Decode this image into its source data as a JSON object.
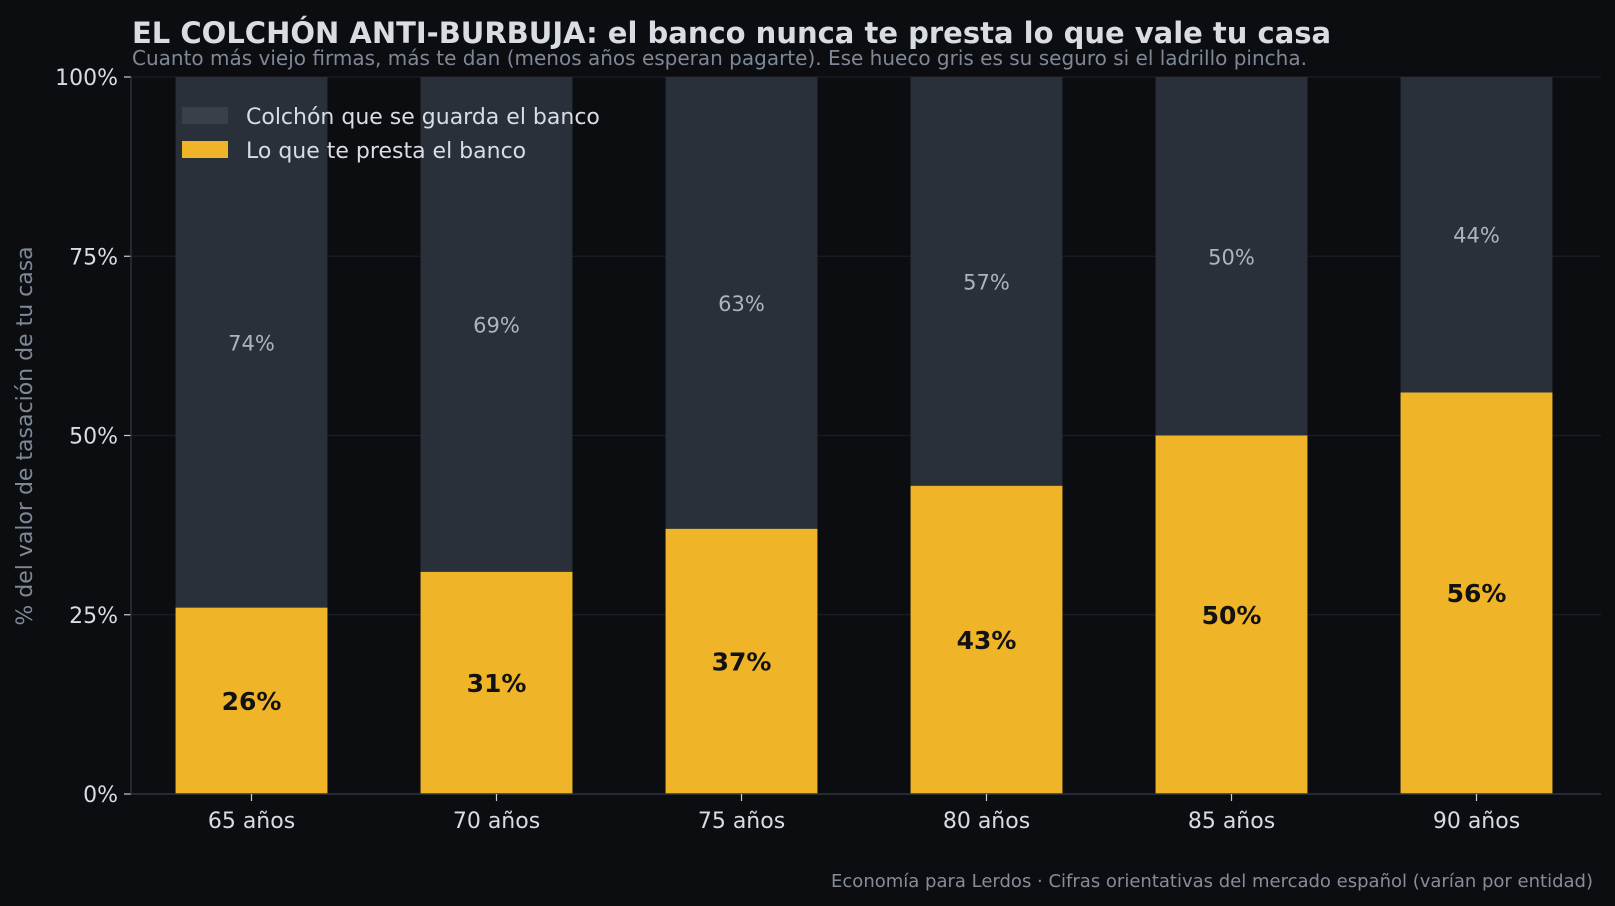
{
  "chart_data": {
    "type": "bar",
    "stacked": true,
    "title": "EL COLCHÓN ANTI-BURBUJA: el banco nunca te presta lo que vale tu casa",
    "subtitle": "Cuanto más viejo firmas, más te dan (menos años esperan pagarte). Ese hueco gris es su seguro si el ladrillo pincha.",
    "footer": "Economía para Lerdos · Cifras orientativas del mercado español (varían por entidad)",
    "xlabel": "",
    "ylabel": "% del valor de tasación de tu casa",
    "ylim": [
      0,
      100
    ],
    "yticks": [
      0,
      25,
      50,
      75,
      100
    ],
    "ytick_labels": [
      "0%",
      "25%",
      "50%",
      "75%",
      "100%"
    ],
    "categories": [
      "65 años",
      "70 años",
      "75 años",
      "80 años",
      "85 años",
      "90 años"
    ],
    "series": [
      {
        "name": "Lo que te presta el banco",
        "values": [
          26,
          31,
          37,
          43,
          50,
          56
        ],
        "labels": [
          "26%",
          "31%",
          "37%",
          "43%",
          "50%",
          "56%"
        ],
        "color": "#f0b429"
      },
      {
        "name": "Colchón que se guarda el banco",
        "values": [
          74,
          69,
          63,
          57,
          50,
          44
        ],
        "labels": [
          "74%",
          "69%",
          "63%",
          "57%",
          "50%",
          "44%"
        ],
        "color": "#2a303a"
      }
    ],
    "legend": {
      "placement": "top-left",
      "order": [
        "Colchón que se guarda el banco",
        "Lo que te presta el banco"
      ]
    },
    "grid": true,
    "colors": {
      "background": "#0b0d11",
      "grid": "#1a1e25",
      "axis": "#30353e"
    }
  }
}
